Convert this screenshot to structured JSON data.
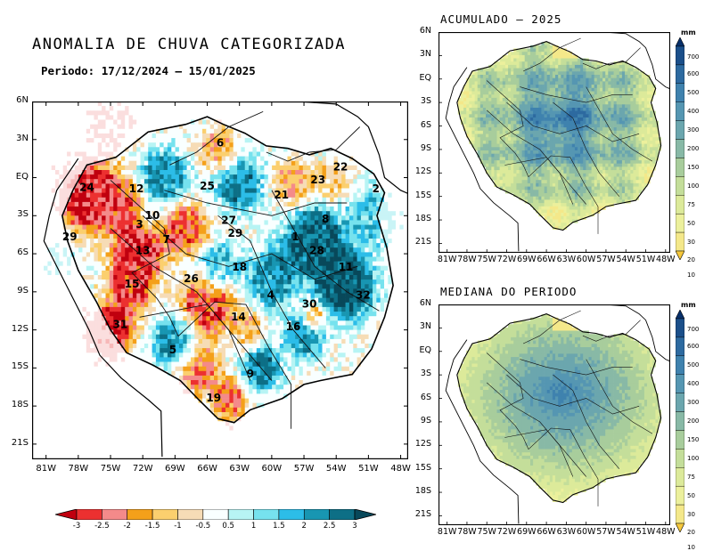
{
  "main": {
    "title": "ANOMALIA DE CHUVA CATEGORIZADA",
    "period_label": "Periodo: 17/12/2024 – 15/01/2025",
    "lat_labels": [
      "6N",
      "3N",
      "EQ",
      "3S",
      "6S",
      "9S",
      "12S",
      "15S",
      "18S",
      "21S"
    ],
    "lon_labels": [
      "81W",
      "78W",
      "75W",
      "72W",
      "69W",
      "66W",
      "63W",
      "60W",
      "57W",
      "54W",
      "51W",
      "48W"
    ],
    "regions": [
      {
        "id": "6",
        "lon": -64.8,
        "lat": 2.7
      },
      {
        "id": "24",
        "lon": -77.2,
        "lat": -0.8
      },
      {
        "id": "12",
        "lon": -72.6,
        "lat": -0.9
      },
      {
        "id": "25",
        "lon": -66.0,
        "lat": -0.7
      },
      {
        "id": "21",
        "lon": -59.1,
        "lat": -1.4
      },
      {
        "id": "23",
        "lon": -55.7,
        "lat": -0.2
      },
      {
        "id": "22",
        "lon": -53.6,
        "lat": 0.8
      },
      {
        "id": "2",
        "lon": -50.3,
        "lat": -0.9
      },
      {
        "id": "10",
        "lon": -71.1,
        "lat": -3.0
      },
      {
        "id": "3",
        "lon": -72.3,
        "lat": -3.7
      },
      {
        "id": "7",
        "lon": -69.8,
        "lat": -4.9
      },
      {
        "id": "27",
        "lon": -64.0,
        "lat": -3.4
      },
      {
        "id": "29",
        "lon": -63.4,
        "lat": -4.4
      },
      {
        "id": "8",
        "lon": -55.0,
        "lat": -3.3
      },
      {
        "id": "29",
        "lon": -78.8,
        "lat": -4.7
      },
      {
        "id": "1",
        "lon": -57.8,
        "lat": -4.7
      },
      {
        "id": "13",
        "lon": -72.0,
        "lat": -5.8
      },
      {
        "id": "28",
        "lon": -55.8,
        "lat": -5.8
      },
      {
        "id": "11",
        "lon": -53.1,
        "lat": -7.1
      },
      {
        "id": "18",
        "lon": -63.0,
        "lat": -7.1
      },
      {
        "id": "15",
        "lon": -73.0,
        "lat": -8.4
      },
      {
        "id": "26",
        "lon": -67.5,
        "lat": -8.0
      },
      {
        "id": "4",
        "lon": -60.1,
        "lat": -9.3
      },
      {
        "id": "32",
        "lon": -51.5,
        "lat": -9.3
      },
      {
        "id": "30",
        "lon": -56.5,
        "lat": -10.0
      },
      {
        "id": "14",
        "lon": -63.1,
        "lat": -11.0
      },
      {
        "id": "31",
        "lon": -74.1,
        "lat": -11.6
      },
      {
        "id": "16",
        "lon": -58.0,
        "lat": -11.8
      },
      {
        "id": "5",
        "lon": -69.2,
        "lat": -13.6
      },
      {
        "id": "9",
        "lon": -62.0,
        "lat": -15.5
      },
      {
        "id": "19",
        "lon": -65.4,
        "lat": -17.4
      }
    ]
  },
  "colorbar": {
    "tick_labels": [
      "-3",
      "-2.5",
      "-2",
      "-1.5",
      "-1",
      "-0.5",
      "0.5",
      "1",
      "1.5",
      "2",
      "2.5",
      "3"
    ],
    "colors": [
      "#c0000f",
      "#ec3030",
      "#f48a8a",
      "#f4a01a",
      "#fbcf6e",
      "#f6dcb6",
      "#f9ffff",
      "#b7f4f4",
      "#76e2ee",
      "#2cbde8",
      "#1896b2",
      "#0d6f86",
      "#08485a"
    ]
  },
  "acumulado": {
    "title": "ACUMULADO – 2025",
    "lat_labels": [
      "6N",
      "3N",
      "EQ",
      "3S",
      "6S",
      "9S",
      "12S",
      "15S",
      "18S",
      "21S"
    ],
    "lon_labels": [
      "81W",
      "78W",
      "75W",
      "72W",
      "69W",
      "66W",
      "63W",
      "60W",
      "57W",
      "54W",
      "51W",
      "48W"
    ]
  },
  "mediana": {
    "title": "MEDIANA DO PERIODO",
    "lat_labels": [
      "6N",
      "3N",
      "EQ",
      "3S",
      "6S",
      "9S",
      "12S",
      "15S",
      "18S",
      "21S"
    ],
    "lon_labels": [
      "81W",
      "78W",
      "75W",
      "72W",
      "69W",
      "66W",
      "63W",
      "60W",
      "57W",
      "54W",
      "51W",
      "48W"
    ]
  },
  "scale": {
    "unit": "mm",
    "values": [
      "700",
      "600",
      "500",
      "400",
      "300",
      "200",
      "150",
      "100",
      "75",
      "50",
      "30",
      "20",
      "10"
    ],
    "colors": [
      "#08306b",
      "#1b4f8a",
      "#2d6aa0",
      "#3f82ae",
      "#5596b2",
      "#6ba6ae",
      "#88b9a6",
      "#a8cd9c",
      "#c4de9a",
      "#dcea9a",
      "#ecf09c",
      "#f4e88a",
      "#f6c83c"
    ]
  }
}
